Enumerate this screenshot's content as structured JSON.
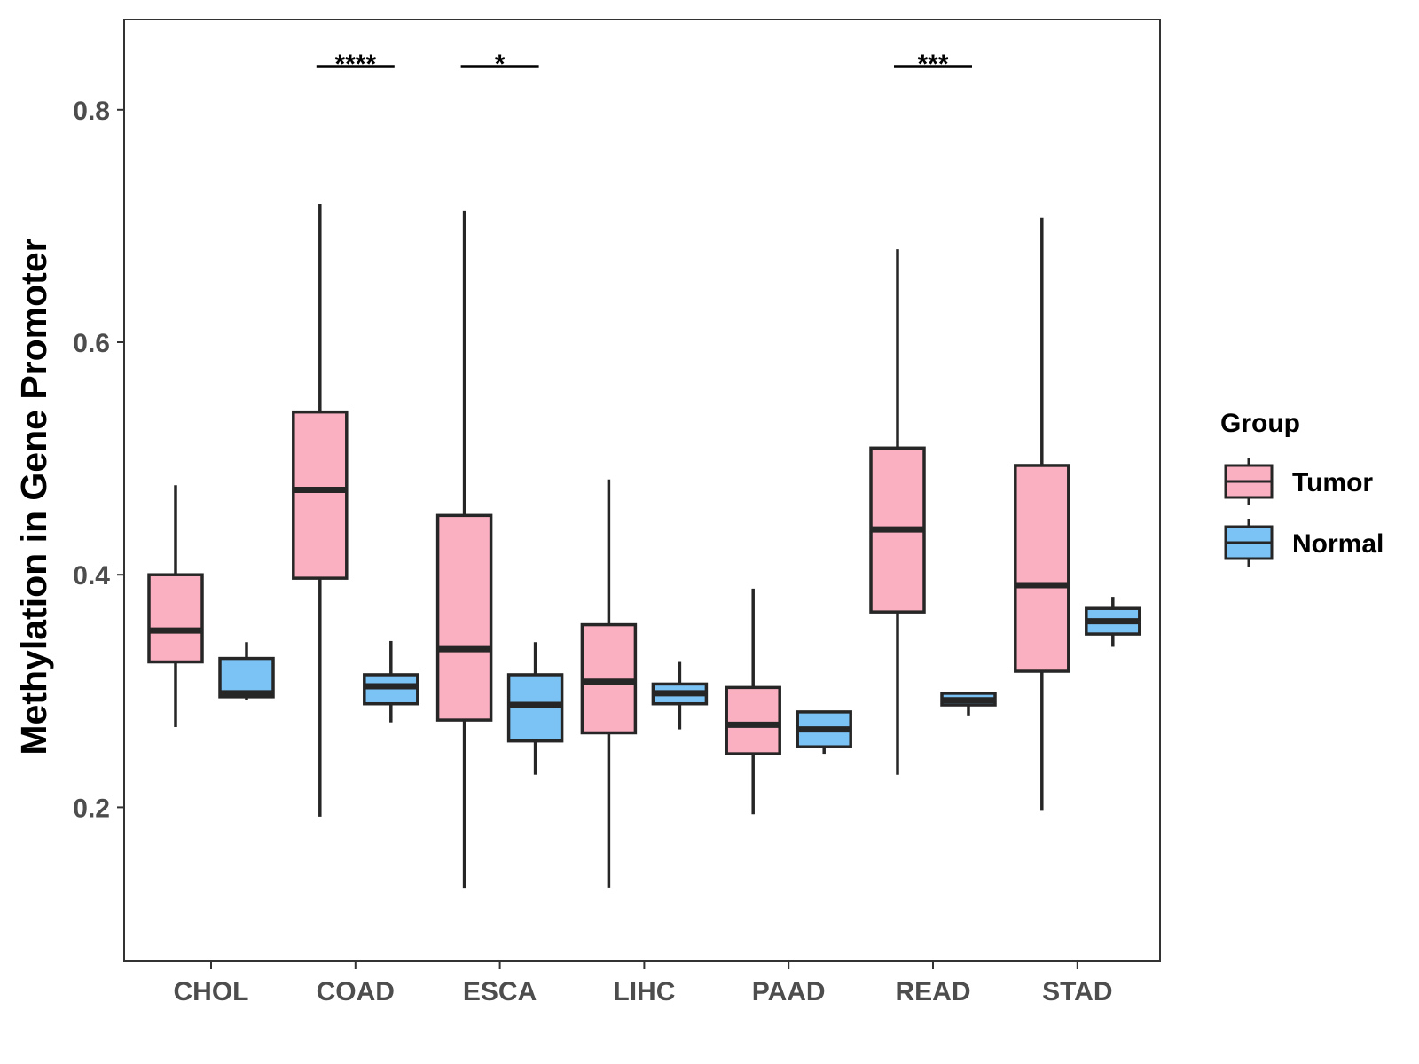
{
  "chart_data": {
    "type": "boxplot",
    "title": "",
    "xlabel": "",
    "ylabel": "Methylation in Gene Promoter",
    "ylim": [
      0.07,
      0.88
    ],
    "yticks": [
      0.2,
      0.4,
      0.6,
      0.8
    ],
    "ytick_labels": [
      "0.2",
      "0.4",
      "0.6",
      "0.8"
    ],
    "grid": false,
    "legend_position": "right",
    "legend_title": "Group",
    "categories": [
      "CHOL",
      "COAD",
      "ESCA",
      "LIHC",
      "PAAD",
      "READ",
      "STAD"
    ],
    "series": [
      {
        "name": "Tumor",
        "color": "#FBB0C1",
        "boxes": [
          {
            "min": 0.269,
            "q1": 0.325,
            "median": 0.352,
            "q3": 0.4,
            "max": 0.477
          },
          {
            "min": 0.192,
            "q1": 0.397,
            "median": 0.473,
            "q3": 0.54,
            "max": 0.719
          },
          {
            "min": 0.13,
            "q1": 0.275,
            "median": 0.336,
            "q3": 0.451,
            "max": 0.713
          },
          {
            "min": 0.131,
            "q1": 0.264,
            "median": 0.308,
            "q3": 0.357,
            "max": 0.482
          },
          {
            "min": 0.194,
            "q1": 0.246,
            "median": 0.271,
            "q3": 0.303,
            "max": 0.388
          },
          {
            "min": 0.228,
            "q1": 0.368,
            "median": 0.439,
            "q3": 0.509,
            "max": 0.68
          },
          {
            "min": 0.197,
            "q1": 0.317,
            "median": 0.391,
            "q3": 0.494,
            "max": 0.707
          }
        ]
      },
      {
        "name": "Normal",
        "color": "#7CC3F5",
        "boxes": [
          {
            "min": 0.292,
            "q1": 0.295,
            "median": 0.298,
            "q3": 0.328,
            "max": 0.342
          },
          {
            "min": 0.273,
            "q1": 0.289,
            "median": 0.304,
            "q3": 0.314,
            "max": 0.343
          },
          {
            "min": 0.228,
            "q1": 0.257,
            "median": 0.288,
            "q3": 0.314,
            "max": 0.342
          },
          {
            "min": 0.267,
            "q1": 0.289,
            "median": 0.298,
            "q3": 0.306,
            "max": 0.325
          },
          {
            "min": 0.246,
            "q1": 0.252,
            "median": 0.267,
            "q3": 0.282,
            "max": 0.283
          },
          {
            "min": 0.279,
            "q1": 0.288,
            "median": 0.292,
            "q3": 0.298,
            "max": 0.299
          },
          {
            "min": 0.338,
            "q1": 0.349,
            "median": 0.36,
            "q3": 0.371,
            "max": 0.381
          }
        ]
      }
    ],
    "significance": [
      {
        "category": "COAD",
        "label": "****"
      },
      {
        "category": "ESCA",
        "label": "*"
      },
      {
        "category": "READ",
        "label": "***"
      }
    ]
  }
}
